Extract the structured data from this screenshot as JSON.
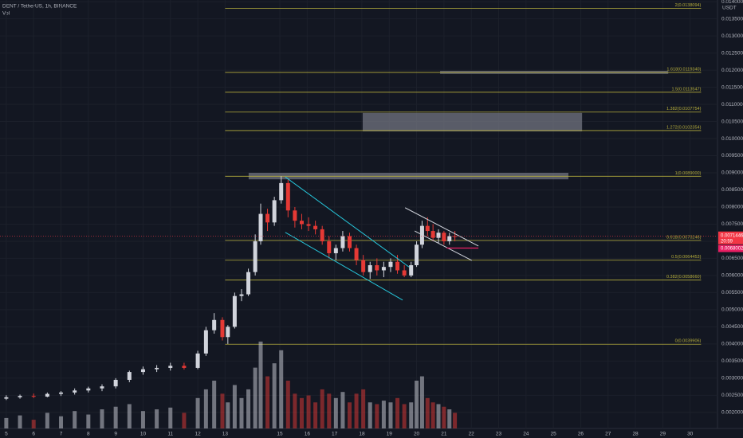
{
  "chart_data": {
    "type": "candlestick",
    "title": "DENT / TetherUS, 1h, BINANCE",
    "volume_label": "Vol",
    "currency": "USDT",
    "x": [
      5,
      5.5,
      6,
      6.5,
      7,
      7.5,
      8,
      8.5,
      9,
      9.5,
      10,
      10.5,
      11,
      11.5,
      12,
      12.3,
      12.6,
      12.9,
      13.1,
      13.35,
      13.6,
      13.85,
      14.1,
      14.3,
      14.55,
      14.8,
      15.05,
      15.3,
      15.55,
      15.8,
      16.05,
      16.3,
      16.55,
      16.8,
      17.05,
      17.3,
      17.55,
      17.8,
      18.05,
      18.3,
      18.55,
      18.8,
      19.05,
      19.3,
      19.55,
      19.8,
      20,
      20.2,
      20.4,
      20.6,
      20.8,
      21,
      21.2,
      21.4
    ],
    "open": [
      0.0024,
      0.00244,
      0.00248,
      0.00246,
      0.00254,
      0.00258,
      0.00264,
      0.0027,
      0.00276,
      0.00295,
      0.00318,
      0.00326,
      0.0033,
      0.00336,
      0.0033,
      0.00372,
      0.0044,
      0.0047,
      0.0042,
      0.0045,
      0.0054,
      0.00545,
      0.0061,
      0.007,
      0.0078,
      0.00755,
      0.0082,
      0.0087,
      0.0079,
      0.0076,
      0.0075,
      0.00745,
      0.00735,
      0.007,
      0.00665,
      0.0068,
      0.00715,
      0.0068,
      0.00645,
      0.0061,
      0.0063,
      0.00615,
      0.00625,
      0.0064,
      0.00615,
      0.006,
      0.0063,
      0.0069,
      0.00745,
      0.0073,
      0.0071,
      0.00725,
      0.007,
      0.00715
    ],
    "high": [
      0.0025,
      0.00252,
      0.00255,
      0.00258,
      0.00262,
      0.0027,
      0.00275,
      0.00282,
      0.003,
      0.00322,
      0.00334,
      0.00338,
      0.00345,
      0.00345,
      0.0038,
      0.0045,
      0.0049,
      0.00478,
      0.00455,
      0.0055,
      0.0056,
      0.0062,
      0.0072,
      0.0081,
      0.00795,
      0.0083,
      0.0089,
      0.0088,
      0.008,
      0.0078,
      0.0077,
      0.0076,
      0.00745,
      0.00715,
      0.0069,
      0.0073,
      0.00725,
      0.0069,
      0.0066,
      0.0064,
      0.0065,
      0.0064,
      0.0065,
      0.0066,
      0.0063,
      0.0064,
      0.007,
      0.0076,
      0.0077,
      0.0075,
      0.00735,
      0.0073,
      0.00725,
      0.0073
    ],
    "low": [
      0.00236,
      0.0024,
      0.00242,
      0.00244,
      0.00248,
      0.00252,
      0.00258,
      0.00262,
      0.0027,
      0.00288,
      0.0031,
      0.00318,
      0.00322,
      0.00325,
      0.00326,
      0.00365,
      0.0043,
      0.0041,
      0.004,
      0.00445,
      0.00525,
      0.0054,
      0.006,
      0.0069,
      0.0073,
      0.00745,
      0.0081,
      0.0077,
      0.0074,
      0.00735,
      0.0073,
      0.0072,
      0.0069,
      0.0065,
      0.00645,
      0.0067,
      0.0067,
      0.0063,
      0.006,
      0.0059,
      0.006,
      0.00595,
      0.0061,
      0.00605,
      0.00595,
      0.00595,
      0.00625,
      0.0068,
      0.00715,
      0.007,
      0.00695,
      0.0069,
      0.0069,
      0.007
    ],
    "close": [
      0.00244,
      0.00248,
      0.00246,
      0.00254,
      0.00258,
      0.00264,
      0.0027,
      0.00276,
      0.00295,
      0.00318,
      0.00326,
      0.0033,
      0.00336,
      0.0033,
      0.00372,
      0.0044,
      0.0047,
      0.0042,
      0.0045,
      0.0054,
      0.00545,
      0.0061,
      0.007,
      0.0078,
      0.00755,
      0.0082,
      0.0087,
      0.0079,
      0.0076,
      0.0075,
      0.00745,
      0.00735,
      0.007,
      0.00665,
      0.0068,
      0.00715,
      0.0068,
      0.00645,
      0.0061,
      0.0063,
      0.00615,
      0.00625,
      0.0064,
      0.00615,
      0.006,
      0.0063,
      0.0069,
      0.00745,
      0.0073,
      0.0071,
      0.00725,
      0.007,
      0.00715,
      0.00714
    ],
    "volume": [
      12,
      15,
      10,
      18,
      14,
      20,
      16,
      22,
      25,
      28,
      20,
      22,
      24,
      18,
      35,
      45,
      55,
      40,
      30,
      50,
      35,
      45,
      70,
      100,
      60,
      75,
      90,
      55,
      40,
      35,
      38,
      30,
      45,
      40,
      35,
      42,
      30,
      40,
      45,
      30,
      28,
      32,
      30,
      35,
      28,
      30,
      55,
      60,
      35,
      30,
      28,
      25,
      22,
      18
    ],
    "vlim": [
      0,
      110
    ],
    "up_color": "#d1d4dc",
    "down_color": "#e53935",
    "xlim": [
      4.77,
      31.0
    ],
    "xticks": [
      5,
      6,
      7,
      8,
      9,
      10,
      11,
      12,
      13,
      15,
      16,
      17,
      18,
      19,
      20,
      21,
      22,
      23,
      24,
      25,
      26,
      27,
      28,
      29,
      30
    ],
    "ylim": [
      0.00153,
      0.01405
    ],
    "yticks": [
      {
        "value": 0.002,
        "label": "0.0020000"
      },
      {
        "value": 0.0025,
        "label": "0.0025000"
      },
      {
        "value": 0.003,
        "label": "0.0030000"
      },
      {
        "value": 0.0035,
        "label": "0.0035000"
      },
      {
        "value": 0.004,
        "label": "0.0040000"
      },
      {
        "value": 0.0045,
        "label": "0.0045000"
      },
      {
        "value": 0.005,
        "label": "0.0050000"
      },
      {
        "value": 0.0055,
        "label": "0.0055000"
      },
      {
        "value": 0.006,
        "label": "0.0060000"
      },
      {
        "value": 0.0065,
        "label": "0.0065000"
      },
      {
        "value": 0.007,
        "label": "0.0070000"
      },
      {
        "value": 0.0075,
        "label": "0.0075000"
      },
      {
        "value": 0.008,
        "label": "0.0080000"
      },
      {
        "value": 0.0085,
        "label": "0.0085000"
      },
      {
        "value": 0.009,
        "label": "0.0090000"
      },
      {
        "value": 0.0095,
        "label": "0.0095000"
      },
      {
        "value": 0.01,
        "label": "0.0100000"
      },
      {
        "value": 0.0105,
        "label": "0.0105000"
      },
      {
        "value": 0.011,
        "label": "0.0110000"
      },
      {
        "value": 0.0115,
        "label": "0.0115000"
      },
      {
        "value": 0.012,
        "label": "0.0120000"
      },
      {
        "value": 0.0125,
        "label": "0.0125000"
      },
      {
        "value": 0.013,
        "label": "0.0130000"
      },
      {
        "value": 0.0135,
        "label": "0.0135000"
      },
      {
        "value": 0.014,
        "label": "0.0140000"
      }
    ],
    "grid": true,
    "levels": [
      {
        "value": 0.0138094,
        "label": "2(0.0138094)"
      },
      {
        "value": 0.011934,
        "label": "1.618(0.0119340)"
      },
      {
        "value": 0.0113547,
        "label": "1.5(0.0113547)"
      },
      {
        "value": 0.0107754,
        "label": "1.382(0.0107754)"
      },
      {
        "value": 0.0102354,
        "label": "1.272(0.0102354)"
      },
      {
        "value": 0.0089,
        "label": "1(0.0089000)"
      },
      {
        "value": 0.0070246,
        "label": "0.618(0.0070246)"
      },
      {
        "value": 0.0064453,
        "label": "0.5(0.0064453)"
      },
      {
        "value": 0.005866,
        "label": "0.382(0.0058660)"
      },
      {
        "value": 0.0039906,
        "label": "0(0.0039906)"
      }
    ],
    "levels_x": [
      13,
      30.4
    ],
    "level_color": "#b5ad3c",
    "zones": [
      {
        "x": [
          13.86,
          25.55
        ],
        "y": [
          0.00881,
          0.009
        ]
      },
      {
        "x": [
          18.03,
          26.05
        ],
        "y": [
          0.01021,
          0.01075
        ]
      },
      {
        "x": [
          20.86,
          29.2
        ],
        "y": [
          0.01189,
          0.01198
        ]
      }
    ],
    "zone_color": "#787b86",
    "trendlines": [
      {
        "color": "#26c6da",
        "x": [
          15.2,
          19.72
        ],
        "y": [
          0.00888,
          0.00625
        ]
      },
      {
        "color": "#26c6da",
        "x": [
          15.2,
          19.49
        ],
        "y": [
          0.00726,
          0.00528
        ]
      },
      {
        "color": "#d1d4dc",
        "x": [
          19.58,
          22.26
        ],
        "y": [
          0.00798,
          0.00686
        ]
      },
      {
        "color": "#d1d4dc",
        "x": [
          19.93,
          22.02
        ],
        "y": [
          0.0073,
          0.00644
        ]
      }
    ],
    "last_price": 0.0071446,
    "countdown": "20:59",
    "last_price_color": "#f23645",
    "alert_price": 0.0068002,
    "alert_x": [
      21.1,
      22.26
    ],
    "alert_color": "#e91e63"
  }
}
